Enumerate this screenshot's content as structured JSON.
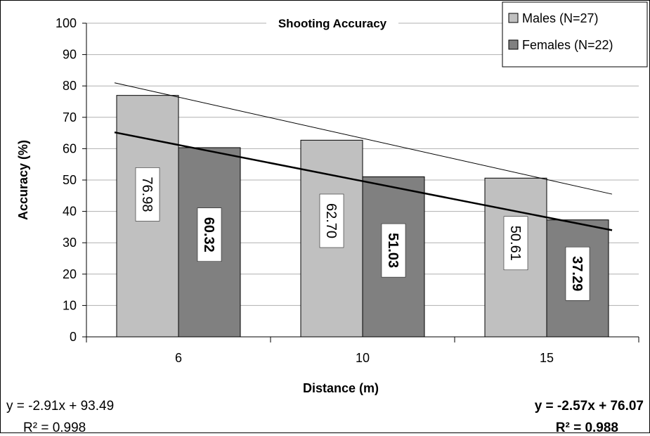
{
  "chart_data": {
    "type": "bar",
    "title": "Shooting Accuracy",
    "xlabel": "Distance (m)",
    "ylabel": "Accuracy (%)",
    "ylim": [
      0,
      100
    ],
    "ytick_step": 10,
    "categories": [
      "6",
      "10",
      "15"
    ],
    "series": [
      {
        "name": "Males (N=27)",
        "values": [
          76.98,
          62.7,
          50.61
        ],
        "labels": [
          "76.98",
          "62.70",
          "50.61"
        ],
        "color": "#c0c0c0",
        "label_bold": false
      },
      {
        "name": "Females (N=22)",
        "values": [
          60.32,
          51.03,
          37.29
        ],
        "labels": [
          "60.32",
          "51.03",
          "37.29"
        ],
        "color": "#808080",
        "label_bold": true
      }
    ],
    "trendlines": [
      {
        "series": "Males (N=27)",
        "equation": "y = -2.91x + 93.49",
        "r2": "R² = 0.998",
        "start": 81,
        "end": 45.5,
        "color": "#000000",
        "bold": false
      },
      {
        "series": "Females (N=22)",
        "equation": "y = -2.57x + 76.07",
        "r2": "R² = 0.988",
        "start": 65.2,
        "end": 34,
        "color": "#000000",
        "bold": true
      }
    ],
    "grid": true,
    "legend_position": "top-right"
  }
}
